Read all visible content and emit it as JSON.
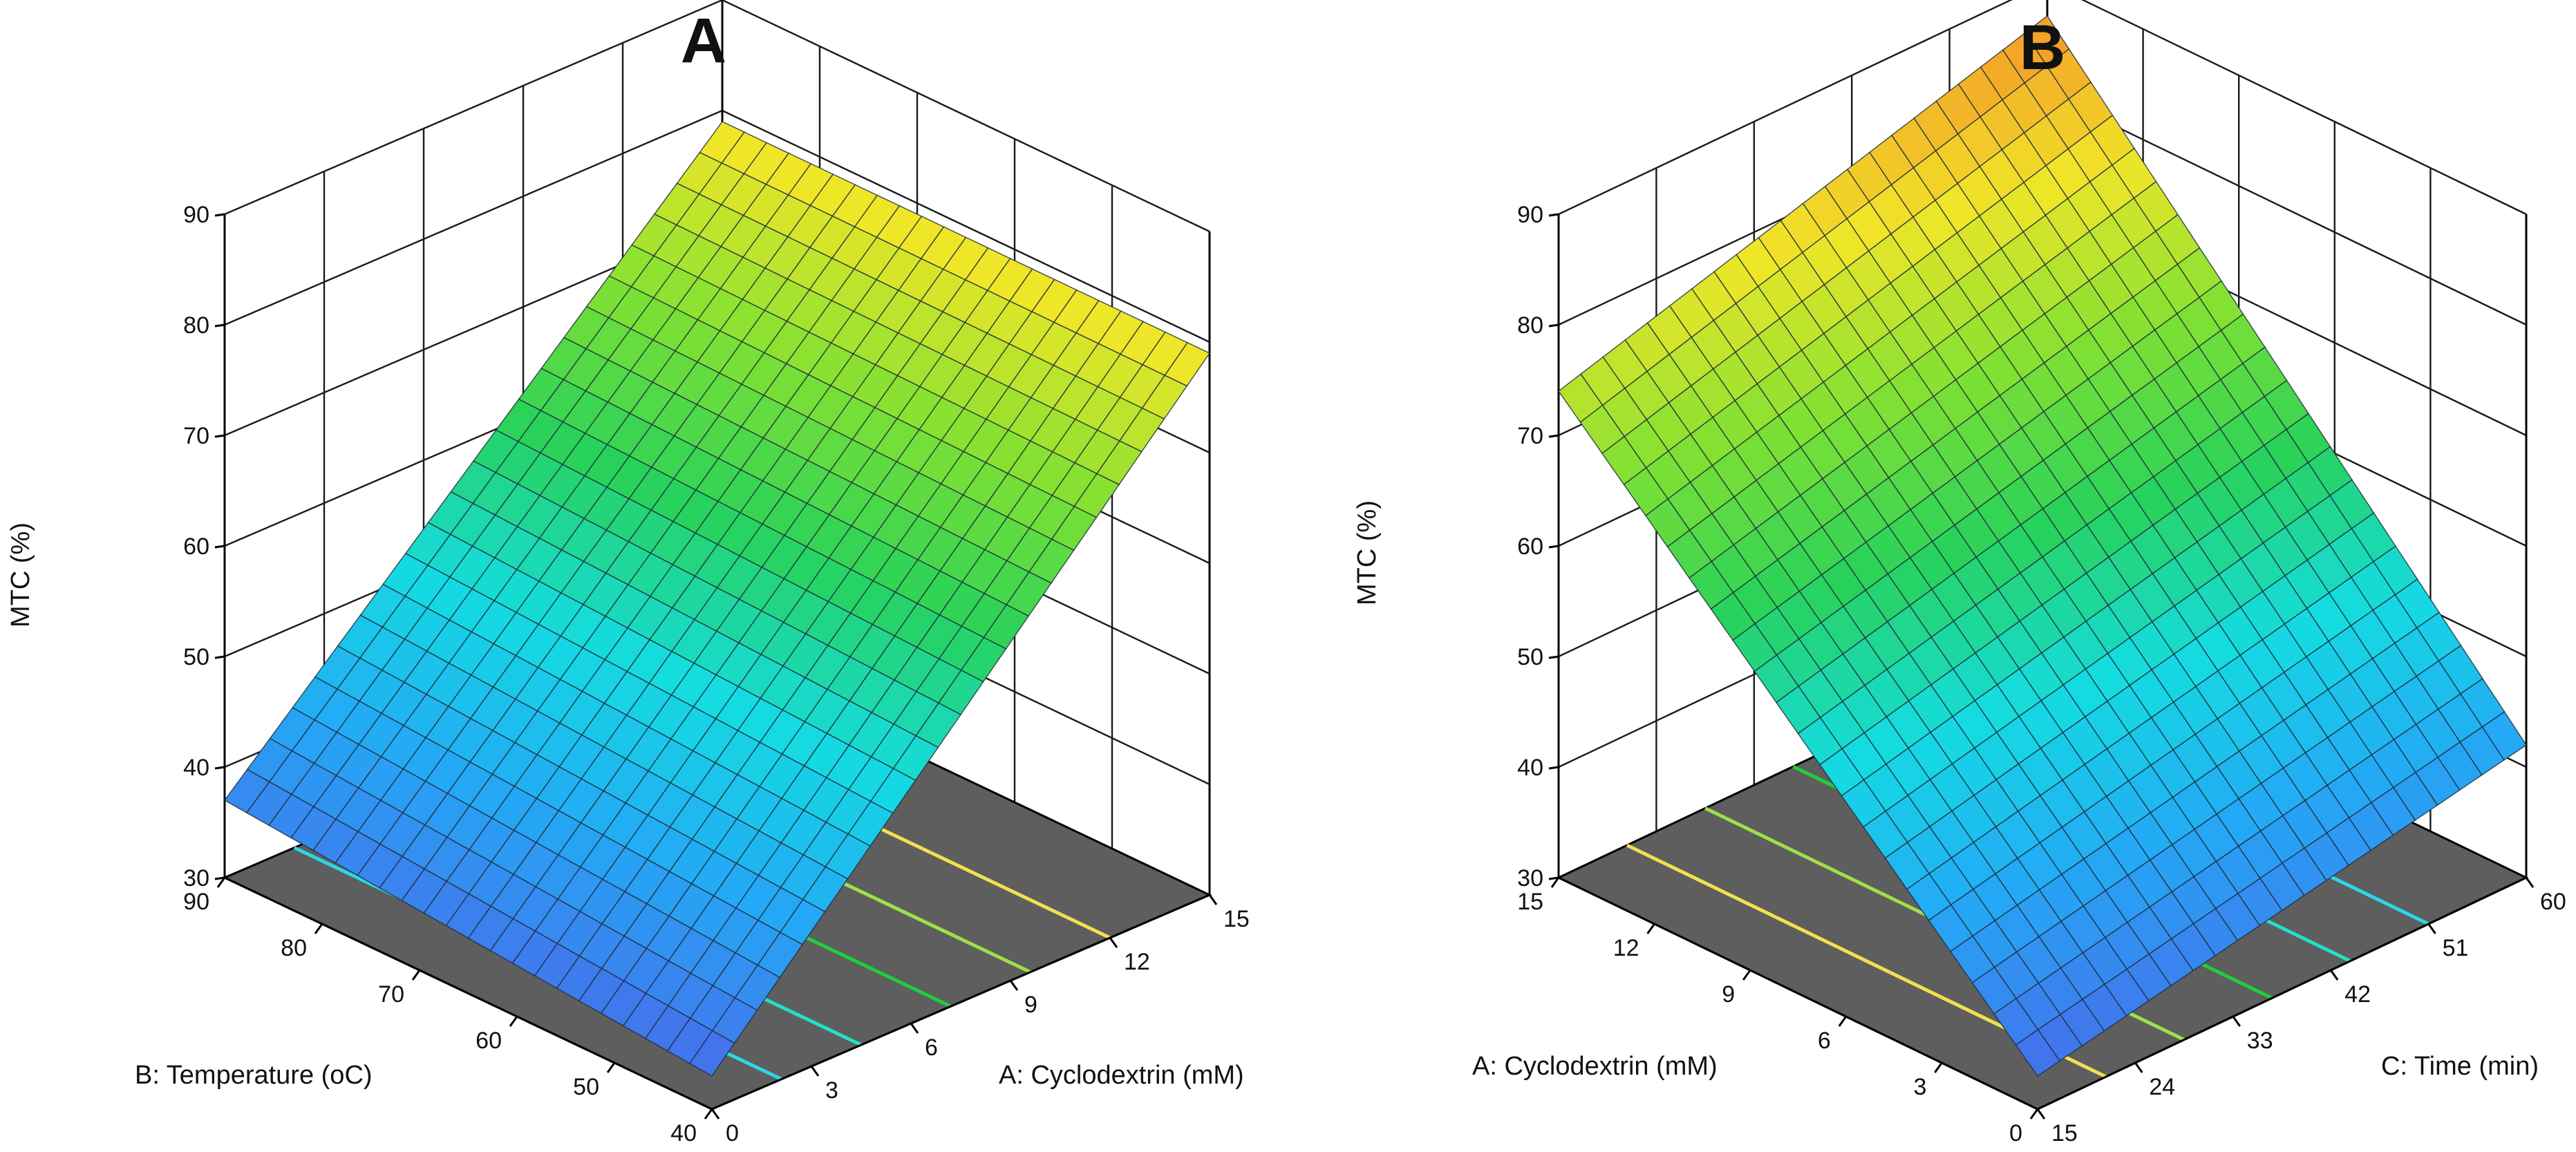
{
  "chart_data": [
    {
      "type": "surface3d",
      "title": "A",
      "zlabel": "MTC (%)",
      "zlim": [
        30,
        90
      ],
      "z_ticks": [
        "90",
        "80",
        "70",
        "60",
        "50",
        "40",
        "30"
      ],
      "left_axis": {
        "label": "B: Temperature (oC)",
        "range": [
          40,
          90
        ],
        "ticks": [
          "90",
          "80",
          "70",
          "60",
          "50",
          "40"
        ]
      },
      "right_axis": {
        "label": "A: Cyclodextrin (mM)",
        "range": [
          0,
          15
        ],
        "ticks": [
          "0",
          "3",
          "6",
          "9",
          "12",
          "15"
        ]
      },
      "surface_corners": {
        "temp_90_cd_0": 37,
        "temp_40_cd_0": 33,
        "temp_90_cd_15": 79,
        "temp_40_cd_15": 79
      },
      "contour_colors": [
        "#2ad8e8",
        "#22e0c8",
        "#1ecf3a",
        "#9fe04a",
        "#f2e050"
      ]
    },
    {
      "type": "surface3d",
      "title": "B",
      "zlabel": "MTC (%)",
      "zlim": [
        30,
        90
      ],
      "z_ticks": [
        "90",
        "80",
        "70",
        "60",
        "50",
        "40",
        "30"
      ],
      "left_axis": {
        "label": "A: Cyclodextrin (mM)",
        "range": [
          0,
          15
        ],
        "ticks": [
          "15",
          "12",
          "9",
          "6",
          "3",
          "0"
        ]
      },
      "right_axis": {
        "label": "C: Time (min)",
        "range": [
          15,
          60
        ],
        "ticks": [
          "15",
          "24",
          "33",
          "42",
          "51",
          "60"
        ]
      },
      "surface_corners": {
        "cd_15_time_15": 74,
        "cd_0_time_15": 33,
        "cd_15_time_60": 87,
        "cd_0_time_60": 42
      },
      "contour_colors": [
        "#f2e050",
        "#9fe04a",
        "#1ecf3a",
        "#22e0c8",
        "#2ad8e8"
      ]
    }
  ]
}
